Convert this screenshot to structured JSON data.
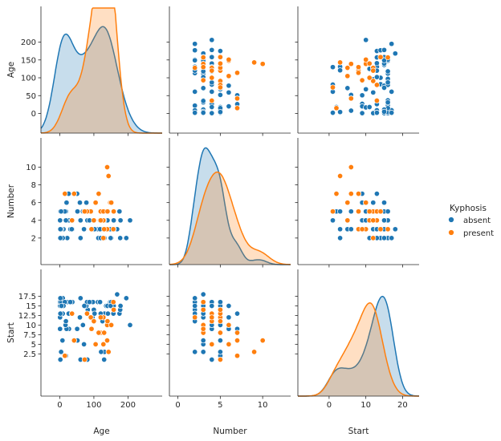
{
  "chart_data": {
    "type": "pairplot",
    "title": "",
    "variables": [
      "Age",
      "Number",
      "Start"
    ],
    "hue": "Kyphosis",
    "legend": {
      "title": "Kyphosis",
      "placement": "right",
      "entries": [
        {
          "label": "absent",
          "color": "#1f77b4"
        },
        {
          "label": "present",
          "color": "#ff7f0e"
        }
      ]
    },
    "axes": {
      "Age": {
        "label": "Age",
        "range": [
          -55,
          300
        ],
        "ticks": [
          0,
          100,
          200
        ],
        "scatter_ticks": [
          0,
          50,
          100,
          150,
          200
        ]
      },
      "Number": {
        "label": "Number",
        "range": [
          -1,
          13.3
        ],
        "ticks": [
          0,
          5,
          10
        ],
        "scatter_ticks": [
          2,
          4,
          6,
          8,
          10
        ]
      },
      "Start": {
        "label": "Start",
        "range": [
          -8.5,
          24.5
        ],
        "ticks": [
          0,
          10,
          20
        ],
        "scatter_ticks": [
          2.5,
          5.0,
          7.5,
          10.0,
          12.5,
          15.0,
          17.5
        ]
      }
    },
    "diag_scale": {
      "Age": 0.0065,
      "Number": 0.265,
      "Start": 0.122
    },
    "grid": false,
    "series": [
      {
        "name": "absent",
        "color": "#1f77b4",
        "points": [
          [
            71,
            3,
            5
          ],
          [
            158,
            3,
            14
          ],
          [
            128,
            4,
            5
          ],
          [
            2,
            5,
            1
          ],
          [
            1,
            4,
            15
          ],
          [
            1,
            2,
            16
          ],
          [
            61,
            2,
            17
          ],
          [
            37,
            3,
            16
          ],
          [
            113,
            2,
            16
          ],
          [
            59,
            6,
            12
          ],
          [
            82,
            5,
            14
          ],
          [
            148,
            3,
            16
          ],
          [
            18,
            5,
            2
          ],
          [
            1,
            4,
            12
          ],
          [
            168,
            3,
            18
          ],
          [
            1,
            3,
            16
          ],
          [
            78,
            6,
            15
          ],
          [
            175,
            5,
            13
          ],
          [
            80,
            5,
            16
          ],
          [
            27,
            4,
            9
          ],
          [
            22,
            2,
            16
          ],
          [
            105,
            6,
            5
          ],
          [
            96,
            3,
            12
          ],
          [
            131,
            2,
            3
          ],
          [
            15,
            7,
            2
          ],
          [
            9,
            5,
            13
          ],
          [
            8,
            3,
            6
          ],
          [
            100,
            3,
            14
          ],
          [
            4,
            3,
            16
          ],
          [
            151,
            2,
            16
          ],
          [
            31,
            3,
            16
          ],
          [
            125,
            2,
            11
          ],
          [
            130,
            5,
            13
          ],
          [
            112,
            3,
            16
          ],
          [
            140,
            5,
            11
          ],
          [
            93,
            3,
            16
          ],
          [
            1,
            3,
            9
          ],
          [
            52,
            5,
            6
          ],
          [
            20,
            6,
            9
          ],
          [
            91,
            5,
            12
          ],
          [
            73,
            5,
            1
          ],
          [
            35,
            3,
            13
          ],
          [
            143,
            9,
            3
          ],
          [
            61,
            4,
            1
          ],
          [
            97,
            3,
            16
          ],
          [
            139,
            3,
            10
          ],
          [
            136,
            4,
            15
          ],
          [
            131,
            5,
            13
          ],
          [
            121,
            3,
            3
          ],
          [
            177,
            2,
            14
          ],
          [
            68,
            5,
            10
          ],
          [
            9,
            2,
            17
          ],
          [
            139,
            10,
            6
          ],
          [
            2,
            2,
            17
          ],
          [
            140,
            4,
            15
          ],
          [
            72,
            5,
            15
          ],
          [
            2,
            3,
            13
          ],
          [
            120,
            5,
            8
          ],
          [
            51,
            7,
            9
          ],
          [
            102,
            3,
            13
          ],
          [
            130,
            4,
            1
          ],
          [
            114,
            7,
            8
          ],
          [
            81,
            4,
            1
          ],
          [
            118,
            3,
            16
          ],
          [
            118,
            4,
            16
          ],
          [
            17,
            4,
            10
          ],
          [
            195,
            2,
            17
          ],
          [
            159,
            4,
            13
          ],
          [
            18,
            4,
            11
          ],
          [
            15,
            5,
            16
          ],
          [
            158,
            5,
            14
          ],
          [
            127,
            4,
            12
          ],
          [
            87,
            4,
            16
          ],
          [
            206,
            4,
            10
          ],
          [
            11,
            3,
            15
          ],
          [
            178,
            4,
            15
          ],
          [
            157,
            3,
            13
          ],
          [
            26,
            7,
            13
          ],
          [
            120,
            2,
            13
          ],
          [
            42,
            7,
            6
          ],
          [
            36,
            4,
            13
          ],
          [
            5,
            3,
            15
          ],
          [
            2,
            3,
            13
          ],
          [
            4,
            5,
            3
          ],
          [
            158,
            4,
            15
          ],
          [
            141,
            5,
            13
          ],
          [
            149,
            2,
            15
          ]
        ]
      },
      {
        "name": "present",
        "color": "#ff7f0e",
        "points": [
          [
            158,
            3,
            14
          ],
          [
            128,
            4,
            5
          ],
          [
            105,
            6,
            5
          ],
          [
            91,
            5,
            12
          ],
          [
            139,
            10,
            6
          ],
          [
            120,
            5,
            8
          ],
          [
            114,
            7,
            8
          ],
          [
            36,
            4,
            13
          ],
          [
            143,
            9,
            3
          ],
          [
            128,
            2,
            12
          ],
          [
            148,
            6,
            10
          ],
          [
            157,
            3,
            16
          ],
          [
            128,
            5,
            12
          ],
          [
            42,
            7,
            6
          ],
          [
            80,
            5,
            13
          ],
          [
            100,
            4,
            11
          ],
          [
            139,
            3,
            10
          ],
          [
            15,
            7,
            2
          ],
          [
            158,
            5,
            14
          ],
          [
            73,
            5,
            1
          ],
          [
            151,
            6,
            10
          ],
          [
            140,
            5,
            11
          ],
          [
            130,
            3,
            8
          ],
          [
            93,
            3,
            9
          ],
          [
            120,
            4,
            12
          ]
        ]
      }
    ]
  }
}
